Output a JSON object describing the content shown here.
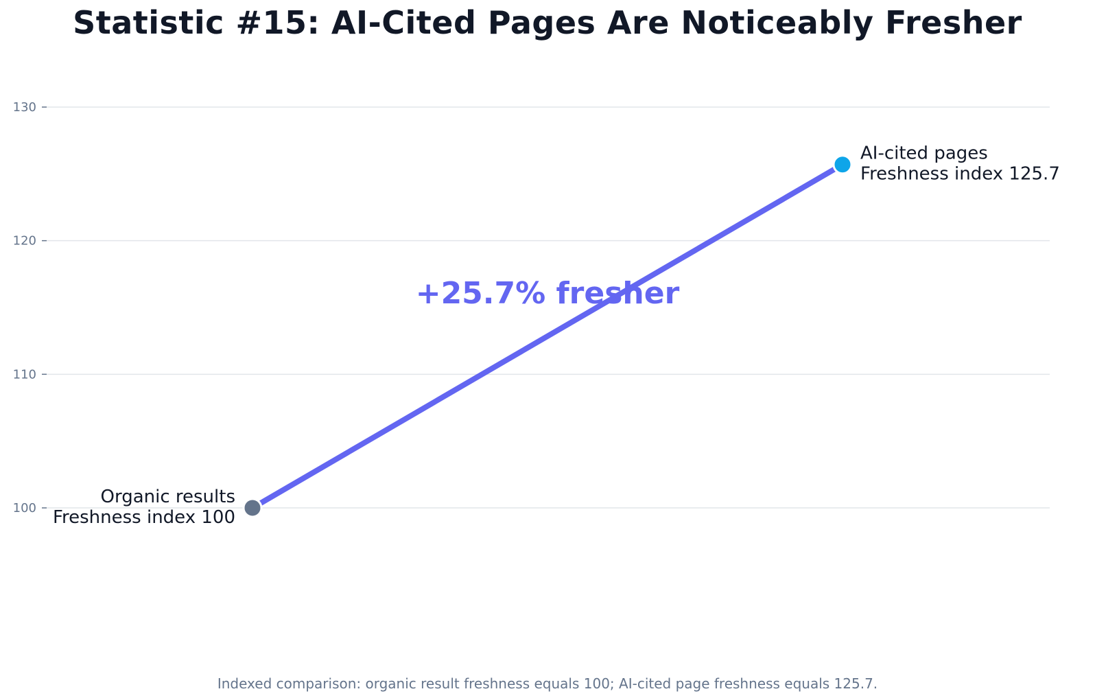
{
  "chart_data": {
    "type": "line",
    "title": "Statistic #15: AI-Cited Pages Are Noticeably Fresher",
    "xlabel": "",
    "ylabel": "",
    "ylim": [
      91,
      133
    ],
    "yticks": [
      100,
      110,
      120,
      130
    ],
    "grid": true,
    "points": [
      {
        "label": "Organic results",
        "sublabel": "Freshness index 100",
        "value": 100,
        "color": "#64748b"
      },
      {
        "label": "AI-cited pages",
        "sublabel": "Freshness index 125.7",
        "value": 125.7,
        "color": "#0ea5e9"
      }
    ],
    "line_color": "#6366f1",
    "annotation": {
      "text": "+25.7% fresher",
      "color": "#6366f1"
    },
    "footnote": "Indexed comparison: organic result freshness equals 100; AI-cited page freshness equals 125.7."
  }
}
